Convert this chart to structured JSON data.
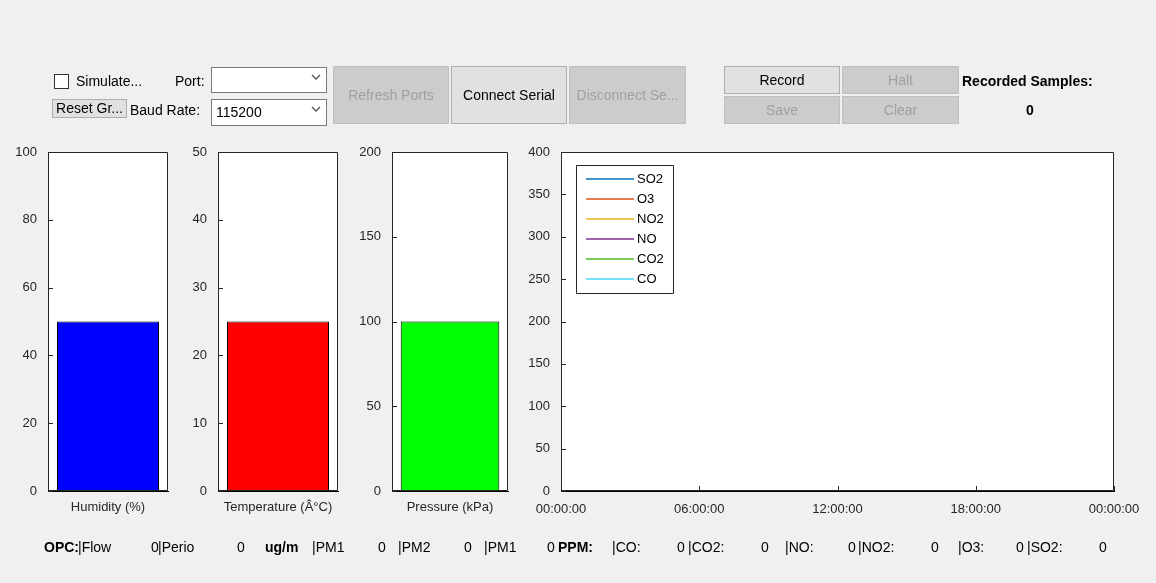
{
  "chart_data": [
    {
      "type": "bar",
      "categories": [
        null
      ],
      "values": [
        50
      ],
      "color": "#0000ff",
      "xlabel": "Humidity (%)",
      "ylim": [
        0,
        100
      ],
      "yticks": [
        0,
        20,
        40,
        60,
        80,
        100
      ],
      "tick_labels": "y"
    },
    {
      "type": "bar",
      "categories": [
        null
      ],
      "values": [
        25
      ],
      "color": "#ff0000",
      "xlabel": "Temperature (Â°C)",
      "ylim": [
        0,
        50
      ],
      "yticks": [
        0,
        10,
        20,
        30,
        40,
        50
      ],
      "tick_labels": "y"
    },
    {
      "type": "bar",
      "categories": [
        null
      ],
      "values": [
        100
      ],
      "color": "#00ff00",
      "xlabel": "Pressure (kPa)",
      "ylim": [
        0,
        200
      ],
      "yticks": [
        0,
        50,
        100,
        150,
        200
      ],
      "tick_labels": "y"
    },
    {
      "type": "line",
      "categories": [
        "00:00:00",
        "06:00:00",
        "12:00:00",
        "18:00:00",
        "00:00:00"
      ],
      "ylim": [
        0,
        400
      ],
      "yticks": [
        0,
        50,
        100,
        150,
        200,
        250,
        300,
        350,
        400
      ],
      "legend": "top left",
      "series": [
        {
          "name": "SO2",
          "color": "#0072bd",
          "values": [
            null,
            null,
            null,
            null,
            null
          ]
        },
        {
          "name": "O3",
          "color": "#d95319",
          "values": [
            null,
            null,
            null,
            null,
            null
          ]
        },
        {
          "name": "NO2",
          "color": "#edb120",
          "values": [
            null,
            null,
            null,
            null,
            null
          ]
        },
        {
          "name": "NO",
          "color": "#7e2f8e",
          "values": [
            null,
            null,
            null,
            null,
            null
          ]
        },
        {
          "name": "CO2",
          "color": "#4dbe1e",
          "values": [
            null,
            null,
            null,
            null,
            null
          ]
        },
        {
          "name": "CO",
          "color": "#4dd6f4",
          "values": [
            null,
            null,
            null,
            null,
            null
          ]
        }
      ]
    },
    {
      "type": "other",
      "annotations": [
        "Simulate...",
        "Port:",
        "Reset Gr...",
        "Baud Rate:",
        "115200",
        "Refresh Ports",
        "Connect Serial",
        "Disconnect Se...",
        "Record",
        "Halt",
        "Save",
        "Clear",
        "Recorded Samples:",
        "0",
        "OPC:",
        "|Flow",
        "0",
        "|Perio",
        "0",
        "ug/m",
        "|PM1",
        "0",
        "|PM2",
        "0",
        "|PM1",
        "0",
        "PPM:",
        "|CO:",
        "0",
        "|CO2:",
        "0",
        "|NO:",
        "0",
        "|NO2:",
        "0",
        "|O3:",
        "0",
        "|SO2:",
        "0"
      ]
    }
  ]
}
